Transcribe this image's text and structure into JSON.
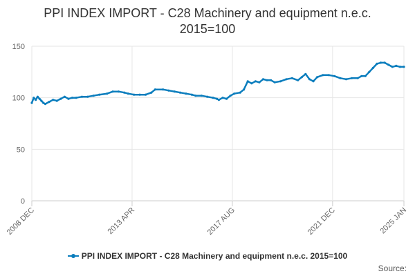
{
  "chart_title": {
    "line1": "PPI INDEX IMPORT - C28 Machinery and equipment n.e.c.",
    "line2": "2015=100"
  },
  "credits": "Source:",
  "chart_data": {
    "type": "line",
    "title": "PPI INDEX IMPORT - C28 Machinery and equipment n.e.c. 2015=100",
    "xlabel": "",
    "ylabel": "",
    "ylim": [
      0,
      150
    ],
    "yticks": [
      0,
      50,
      100,
      150
    ],
    "x_tick_labels": [
      "2008 DEC",
      "2013 APR",
      "2017 AUG",
      "2021 DEC",
      "2025 JAN"
    ],
    "x_tick_dates": [
      "2008-12",
      "2013-04",
      "2017-08",
      "2021-12",
      "2025-01"
    ],
    "grid": true,
    "legend_position": "bottom-center",
    "series": [
      {
        "name": "PPI INDEX IMPORT - C28 Machinery and equipment n.e.c. 2015=100",
        "color": "#0a7dbd",
        "points": [
          [
            "2008-12",
            95
          ],
          [
            "2009-01",
            100
          ],
          [
            "2009-02",
            98
          ],
          [
            "2009-03",
            101
          ],
          [
            "2009-04",
            99
          ],
          [
            "2009-05",
            97
          ],
          [
            "2009-06",
            95
          ],
          [
            "2009-07",
            94
          ],
          [
            "2009-09",
            96
          ],
          [
            "2009-11",
            98
          ],
          [
            "2010-01",
            97
          ],
          [
            "2010-03",
            99
          ],
          [
            "2010-05",
            101
          ],
          [
            "2010-07",
            99
          ],
          [
            "2010-09",
            100
          ],
          [
            "2010-11",
            100
          ],
          [
            "2011-02",
            101
          ],
          [
            "2011-05",
            101
          ],
          [
            "2011-08",
            102
          ],
          [
            "2011-11",
            103
          ],
          [
            "2012-03",
            104
          ],
          [
            "2012-06",
            106
          ],
          [
            "2012-09",
            106
          ],
          [
            "2012-12",
            105
          ],
          [
            "2013-02",
            104
          ],
          [
            "2013-05",
            103
          ],
          [
            "2013-08",
            103
          ],
          [
            "2013-11",
            103
          ],
          [
            "2014-02",
            105
          ],
          [
            "2014-04",
            108
          ],
          [
            "2014-08",
            108
          ],
          [
            "2014-11",
            107
          ],
          [
            "2015-02",
            106
          ],
          [
            "2015-05",
            105
          ],
          [
            "2015-08",
            104
          ],
          [
            "2015-11",
            103
          ],
          [
            "2016-01",
            102
          ],
          [
            "2016-04",
            102
          ],
          [
            "2016-07",
            101
          ],
          [
            "2016-10",
            100
          ],
          [
            "2016-12",
            99
          ],
          [
            "2017-01",
            98
          ],
          [
            "2017-03",
            100
          ],
          [
            "2017-05",
            99
          ],
          [
            "2017-07",
            102
          ],
          [
            "2017-09",
            104
          ],
          [
            "2017-12",
            105
          ],
          [
            "2018-02",
            108
          ],
          [
            "2018-04",
            116
          ],
          [
            "2018-06",
            114
          ],
          [
            "2018-08",
            116
          ],
          [
            "2018-10",
            115
          ],
          [
            "2018-12",
            118
          ],
          [
            "2019-02",
            117
          ],
          [
            "2019-04",
            117
          ],
          [
            "2019-06",
            115
          ],
          [
            "2019-09",
            116
          ],
          [
            "2019-12",
            118
          ],
          [
            "2020-03",
            119
          ],
          [
            "2020-06",
            117
          ],
          [
            "2020-08",
            120
          ],
          [
            "2020-10",
            123
          ],
          [
            "2020-12",
            118
          ],
          [
            "2021-02",
            116
          ],
          [
            "2021-04",
            120
          ],
          [
            "2021-07",
            122
          ],
          [
            "2021-10",
            122
          ],
          [
            "2022-01",
            121
          ],
          [
            "2022-04",
            119
          ],
          [
            "2022-07",
            118
          ],
          [
            "2022-10",
            119
          ],
          [
            "2023-01",
            119
          ],
          [
            "2023-03",
            121
          ],
          [
            "2023-05",
            121
          ],
          [
            "2023-07",
            125
          ],
          [
            "2023-09",
            129
          ],
          [
            "2023-11",
            133
          ],
          [
            "2024-01",
            134
          ],
          [
            "2024-03",
            134
          ],
          [
            "2024-05",
            132
          ],
          [
            "2024-07",
            130
          ],
          [
            "2024-09",
            131
          ],
          [
            "2024-11",
            130
          ],
          [
            "2025-01",
            130
          ]
        ]
      }
    ]
  }
}
